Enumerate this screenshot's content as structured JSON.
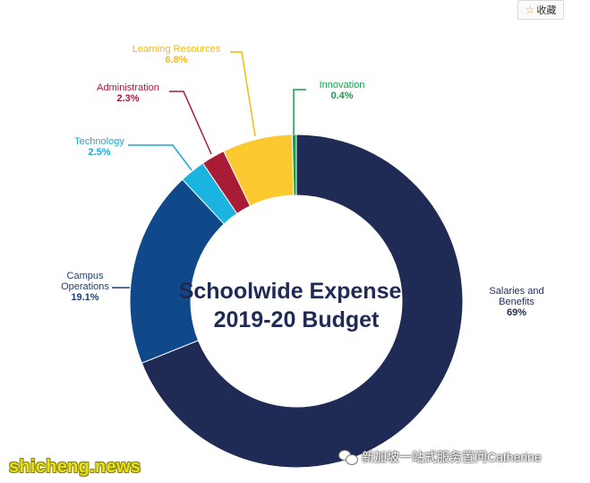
{
  "toolbar": {
    "favorite_label": "收藏",
    "favorite_icon": "star-icon"
  },
  "chart_data": {
    "type": "pie",
    "title": "Schoolwide Expenses",
    "subtitle": "2019-20 Budget",
    "start_angle_deg": 0,
    "slices": [
      {
        "label": [
          "Salaries and",
          "Benefits"
        ],
        "value": 69,
        "display": "69%",
        "color": "#1f2a55",
        "label_color": "#1f2a55"
      },
      {
        "label": [
          "Campus",
          "Operations"
        ],
        "value": 19.1,
        "display": "19.1%",
        "color": "#10498a",
        "label_color": "#1d3f78"
      },
      {
        "label": [
          "Technology"
        ],
        "value": 2.5,
        "display": "2.5%",
        "color": "#1bb4e0",
        "label_color": "#19a9d6"
      },
      {
        "label": [
          "Administration"
        ],
        "value": 2.3,
        "display": "2.3%",
        "color": "#a81c36",
        "label_color": "#a81c36"
      },
      {
        "label": [
          "Learning Resources"
        ],
        "value": 6.8,
        "display": "6.8%",
        "color": "#fcc930",
        "label_color": "#f5b90f"
      },
      {
        "label": [
          "Innovation"
        ],
        "value": 0.4,
        "display": "0.4%",
        "color": "#15a04b",
        "label_color": "#15a04b"
      }
    ]
  },
  "watermarks": {
    "site": "shicheng.news",
    "account": "新加坡一站式服务置问Catherine",
    "account_icon": "wechat-icon"
  }
}
